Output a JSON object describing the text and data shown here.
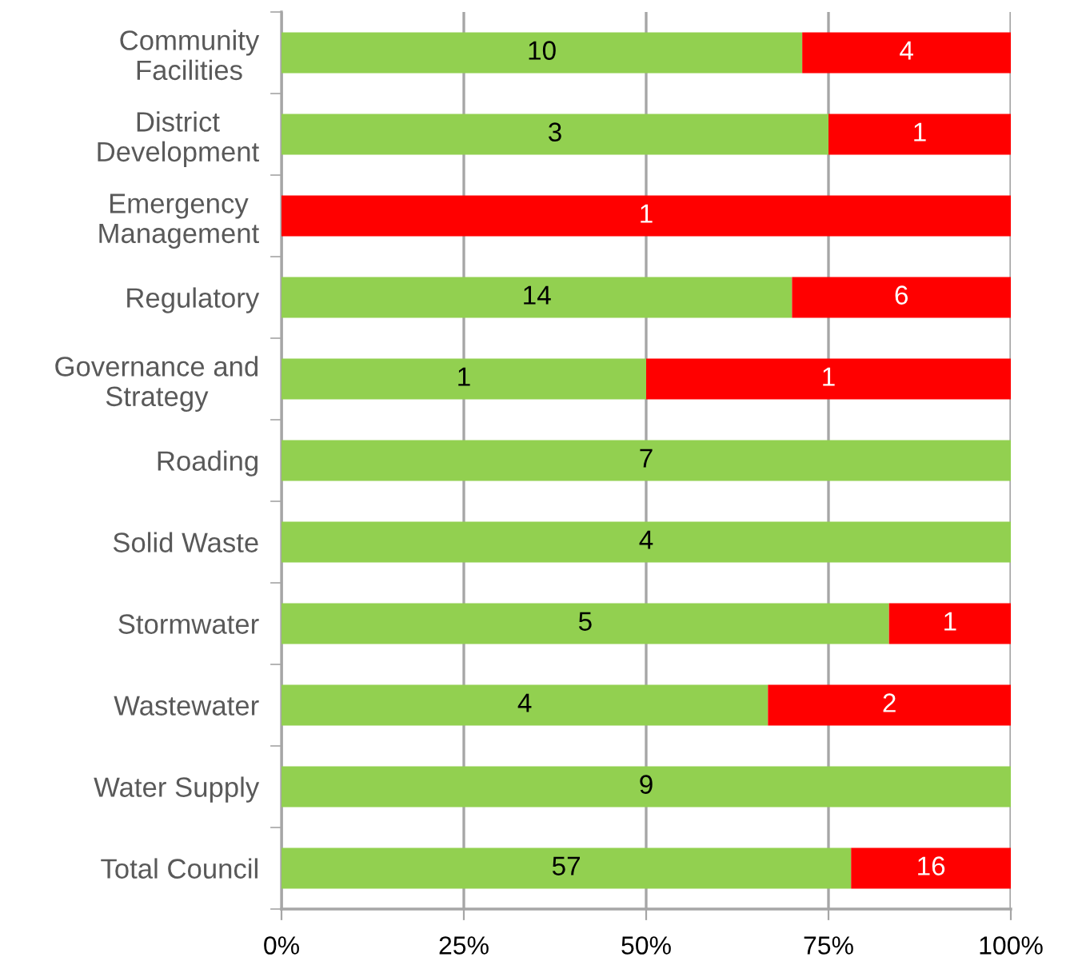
{
  "chart_data": {
    "type": "bar",
    "orientation": "horizontal",
    "stacked": true,
    "categories": [
      "Community Facilities",
      "District Development",
      "Emergency Management",
      "Regulatory",
      "Governance and Strategy",
      "Roading",
      "Solid Waste",
      "Stormwater",
      "Wastewater",
      "Water Supply",
      "Total Council"
    ],
    "series": [
      {
        "color": "#92d050",
        "values": [
          71.4,
          75,
          null,
          70,
          50,
          100,
          100,
          83.3,
          66.7,
          100,
          78.1
        ]
      },
      {
        "color": "#ff0000",
        "values": [
          28.6,
          25,
          100,
          30,
          50,
          null,
          null,
          16.7,
          33.3,
          null,
          21.9
        ]
      }
    ],
    "annotations": [
      "10",
      "4",
      "3",
      "1",
      "1",
      "14",
      "6",
      "1",
      "1",
      "7",
      "4",
      "5",
      "1",
      "4",
      "2",
      "9",
      "57",
      "16"
    ],
    "xlim": [
      0,
      100
    ],
    "xticks": [
      {
        "value": 0,
        "label": "0%"
      },
      {
        "value": 25,
        "label": "25%"
      },
      {
        "value": 50,
        "label": "50%"
      },
      {
        "value": 75,
        "label": "75%"
      },
      {
        "value": 100,
        "label": "100%"
      }
    ],
    "grid": "x"
  }
}
